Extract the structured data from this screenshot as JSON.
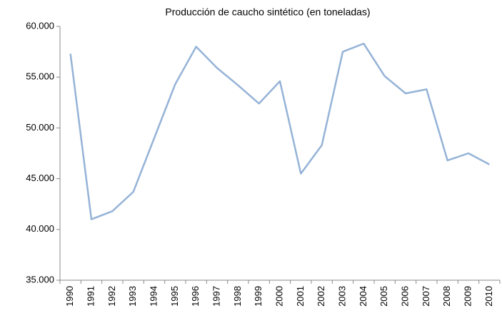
{
  "chart_data": {
    "type": "line",
    "title": "Producción de caucho sintético (en toneladas)",
    "categories": [
      "1990",
      "1991",
      "1992",
      "1993",
      "1994",
      "1995",
      "1996",
      "1997",
      "1998",
      "1999",
      "2000",
      "2001",
      "2002",
      "2003",
      "2004",
      "2005",
      "2006",
      "2007",
      "2008",
      "2009",
      "2010"
    ],
    "series": [
      {
        "name": "Producción",
        "color": "#95b3d7",
        "values": [
          57300,
          41000,
          41800,
          43700,
          49000,
          54300,
          58000,
          55900,
          54200,
          52400,
          54600,
          45500,
          48300,
          57500,
          58300,
          55100,
          53400,
          53800,
          46800,
          47500,
          46400
        ]
      }
    ],
    "ylim": [
      35000,
      60000
    ],
    "yticks": [
      {
        "value": 35000,
        "label": "35.000"
      },
      {
        "value": 40000,
        "label": "40.000"
      },
      {
        "value": 45000,
        "label": "45.000"
      },
      {
        "value": 50000,
        "label": "50.000"
      },
      {
        "value": 55000,
        "label": "55.000"
      },
      {
        "value": 60000,
        "label": "60.000"
      }
    ],
    "grid": false
  }
}
